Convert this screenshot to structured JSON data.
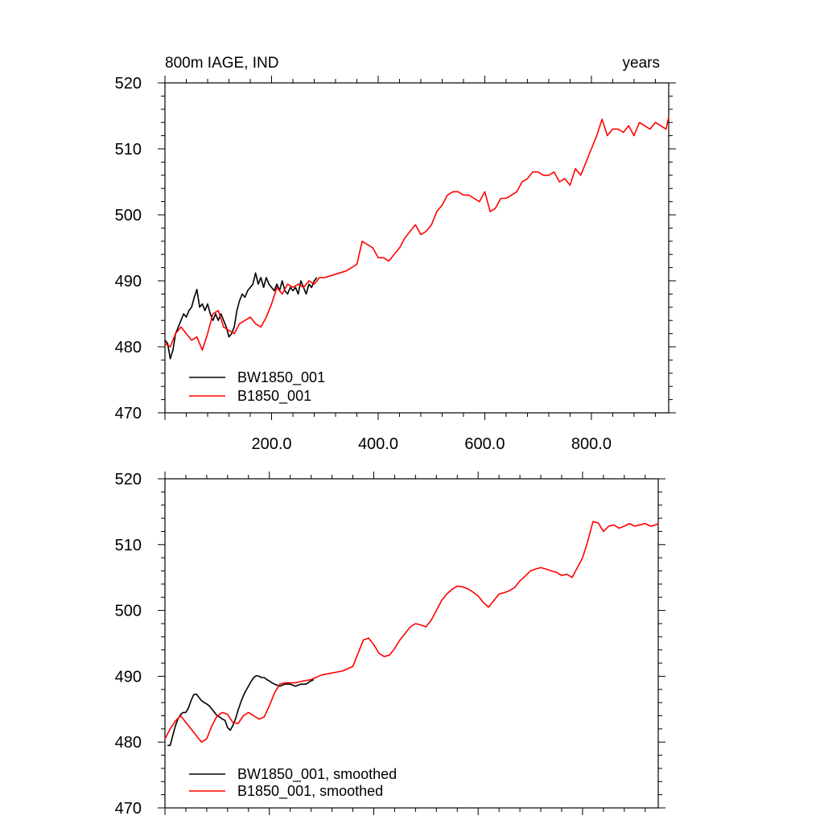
{
  "chart_data": [
    {
      "type": "line",
      "title_left": "800m IAGE, IND",
      "title_right": "years",
      "xlim": [
        0,
        945
      ],
      "ylim": [
        470,
        520
      ],
      "xticks": [
        200,
        400,
        600,
        800
      ],
      "xtick_labels": [
        "200.0",
        "400.0",
        "600.0",
        "800.0"
      ],
      "yticks": [
        470,
        480,
        490,
        500,
        510,
        520
      ],
      "ytick_labels": [
        "470",
        "480",
        "490",
        "500",
        "510",
        "520"
      ],
      "legend_position": "bottom-left",
      "series": [
        {
          "name": "BW1850_001",
          "color": "#000000",
          "x": [
            0,
            5,
            10,
            15,
            20,
            25,
            30,
            35,
            40,
            45,
            50,
            55,
            60,
            65,
            70,
            75,
            80,
            85,
            90,
            95,
            100,
            105,
            110,
            115,
            120,
            125,
            130,
            135,
            140,
            145,
            150,
            155,
            160,
            165,
            170,
            175,
            180,
            185,
            190,
            195,
            200,
            205,
            210,
            215,
            220,
            225,
            230,
            235,
            240,
            245,
            250,
            255,
            260,
            265,
            270,
            275,
            280,
            285
          ],
          "y": [
            481,
            480.5,
            478.2,
            479.5,
            482,
            483,
            484,
            485,
            484.5,
            485.5,
            486,
            487.5,
            488.7,
            486,
            486.5,
            485.5,
            486.5,
            485,
            484,
            485,
            484,
            485,
            484,
            483,
            481.5,
            482,
            483,
            485.5,
            487,
            488,
            487.5,
            488.5,
            489,
            489.5,
            491.2,
            489.5,
            490.5,
            489,
            490.5,
            489.5,
            489,
            488.5,
            489.5,
            488.5,
            490,
            488.5,
            488,
            489,
            488.5,
            489,
            488,
            490,
            489,
            488,
            489.5,
            489,
            490,
            490.5
          ]
        },
        {
          "name": "B1850_001",
          "color": "#ff0000",
          "x": [
            0,
            10,
            20,
            30,
            40,
            50,
            60,
            70,
            80,
            90,
            100,
            110,
            120,
            130,
            140,
            150,
            160,
            170,
            180,
            190,
            200,
            210,
            220,
            230,
            240,
            250,
            260,
            270,
            280,
            290,
            300,
            320,
            340,
            360,
            370,
            380,
            390,
            400,
            410,
            420,
            430,
            440,
            450,
            460,
            470,
            480,
            490,
            500,
            510,
            520,
            530,
            540,
            550,
            560,
            570,
            580,
            590,
            600,
            610,
            620,
            630,
            640,
            650,
            660,
            670,
            680,
            690,
            700,
            710,
            720,
            730,
            740,
            750,
            760,
            770,
            780,
            790,
            800,
            810,
            820,
            830,
            840,
            850,
            860,
            870,
            880,
            890,
            900,
            910,
            920,
            930,
            940,
            945
          ],
          "y": [
            480.5,
            480,
            482,
            483,
            482,
            481,
            481.5,
            479.5,
            482,
            485,
            485.5,
            483,
            482.5,
            482,
            483.5,
            484,
            484.5,
            483.5,
            483,
            484.5,
            486.5,
            489,
            488,
            489.5,
            489,
            489.5,
            489,
            490,
            489.5,
            490.5,
            490.5,
            491,
            491.5,
            492.5,
            496,
            495.5,
            495,
            493.5,
            493.5,
            493,
            494,
            495,
            496.5,
            497.5,
            498.5,
            497,
            497.5,
            498.5,
            500.5,
            501.5,
            503,
            503.5,
            503.5,
            503,
            503,
            502.5,
            502,
            503.5,
            500.5,
            501,
            502.5,
            502.5,
            503,
            503.5,
            505,
            505.5,
            506.5,
            506.5,
            506,
            506,
            506.5,
            505,
            505.5,
            504.5,
            507,
            506,
            508,
            510,
            512,
            514.5,
            512,
            513,
            513,
            512.5,
            513.5,
            512,
            514,
            513.5,
            513,
            514,
            513.5,
            513,
            514.8
          ]
        }
      ]
    },
    {
      "type": "line",
      "xlim": [
        0,
        945
      ],
      "ylim": [
        470,
        520
      ],
      "xticks": [
        200,
        400,
        600,
        800
      ],
      "yticks": [
        470,
        480,
        490,
        500,
        510,
        520
      ],
      "ytick_labels": [
        "470",
        "480",
        "490",
        "500",
        "510",
        "520"
      ],
      "legend_position": "bottom-left",
      "series": [
        {
          "name": "BW1850_001, smoothed",
          "color": "#000000",
          "x": [
            5,
            10,
            15,
            20,
            25,
            30,
            35,
            40,
            45,
            50,
            55,
            60,
            65,
            70,
            75,
            80,
            85,
            90,
            95,
            100,
            105,
            110,
            115,
            120,
            125,
            130,
            135,
            140,
            145,
            150,
            155,
            160,
            165,
            170,
            175,
            180,
            185,
            190,
            195,
            200,
            205,
            210,
            220,
            230,
            240,
            250,
            260,
            270,
            280,
            285
          ],
          "y": [
            479.5,
            479.5,
            481,
            482.5,
            483.5,
            484.2,
            484.5,
            484.5,
            485.2,
            486.3,
            487.2,
            487.3,
            486.8,
            486.3,
            486,
            485.8,
            485.5,
            485,
            484.5,
            484,
            483.8,
            483.5,
            483.3,
            482.2,
            481.8,
            482.5,
            483.5,
            484.8,
            486,
            487,
            487.8,
            488.5,
            489.2,
            489.8,
            490.1,
            490,
            489.8,
            489.8,
            489.5,
            489.3,
            489,
            488.8,
            488.5,
            488.8,
            488.8,
            488.5,
            488.8,
            488.8,
            489.3,
            489.5
          ]
        },
        {
          "name": "B1850_001, smoothed",
          "color": "#ff0000",
          "x": [
            0,
            10,
            20,
            30,
            40,
            50,
            60,
            70,
            80,
            90,
            100,
            110,
            120,
            130,
            140,
            150,
            160,
            170,
            180,
            190,
            200,
            210,
            220,
            230,
            240,
            250,
            260,
            280,
            300,
            320,
            340,
            360,
            370,
            380,
            390,
            400,
            410,
            420,
            430,
            440,
            450,
            460,
            470,
            480,
            490,
            500,
            510,
            520,
            530,
            540,
            550,
            560,
            570,
            580,
            590,
            600,
            610,
            620,
            630,
            640,
            650,
            660,
            670,
            680,
            690,
            700,
            710,
            720,
            730,
            740,
            750,
            760,
            770,
            780,
            790,
            800,
            810,
            820,
            830,
            840,
            850,
            860,
            870,
            880,
            890,
            900,
            910,
            920,
            930,
            940,
            945
          ],
          "y": [
            480.5,
            482,
            483.2,
            484,
            483,
            482,
            481,
            480,
            480.5,
            482.5,
            484,
            484.5,
            484.2,
            483,
            482.8,
            484,
            484.5,
            484,
            483.5,
            483.8,
            485.5,
            487.5,
            488.8,
            489,
            489,
            489,
            489.2,
            489.5,
            490.2,
            490.5,
            490.8,
            491.5,
            493.5,
            495.5,
            495.8,
            494.8,
            493.5,
            493,
            493.2,
            494.2,
            495.5,
            496.5,
            497.5,
            498,
            497.8,
            497.5,
            498.5,
            500,
            501.5,
            502.5,
            503.2,
            503.7,
            503.6,
            503.3,
            502.8,
            502.2,
            501.2,
            500.5,
            501.5,
            502.5,
            502.7,
            503,
            503.5,
            504.5,
            505.2,
            506,
            506.3,
            506.5,
            506.3,
            506,
            505.8,
            505.3,
            505.5,
            505,
            506.5,
            508,
            510.5,
            513.5,
            513.3,
            512,
            512.8,
            513,
            512.5,
            512.8,
            513.2,
            512.8,
            513,
            513.2,
            512.8,
            513,
            513.2
          ]
        }
      ]
    }
  ]
}
